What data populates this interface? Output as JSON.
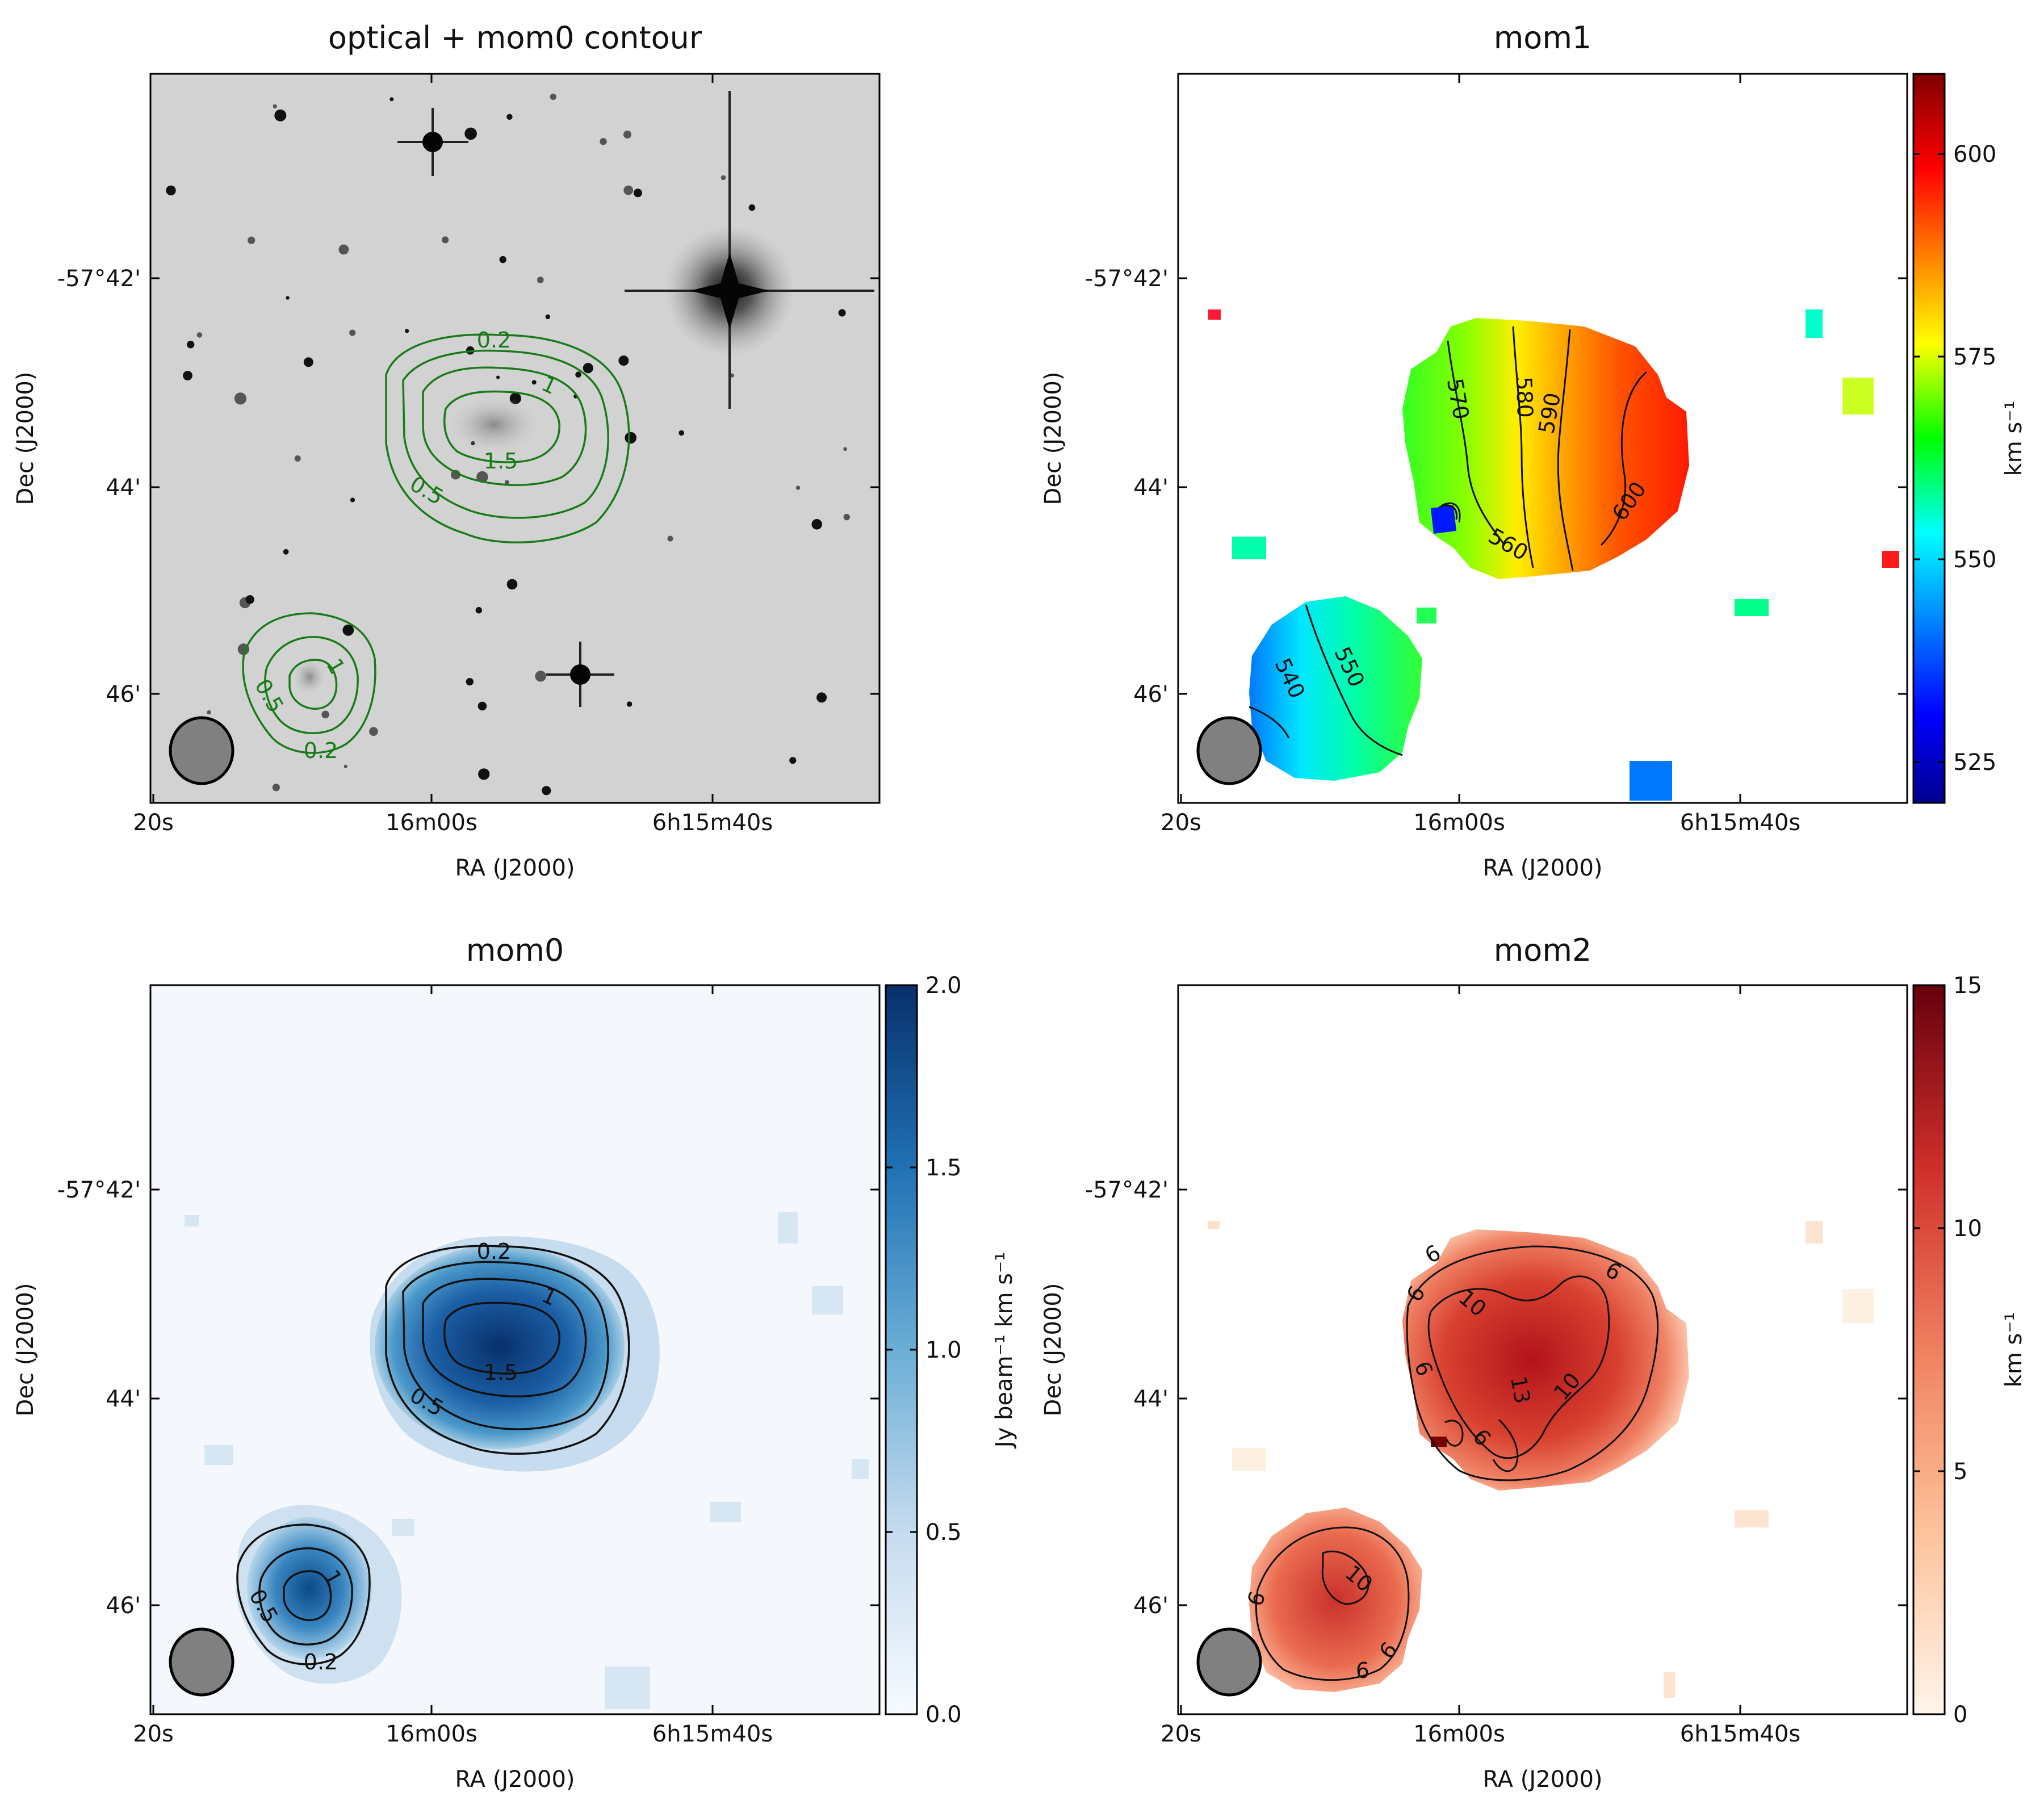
{
  "chart_data": [
    {
      "type": "image",
      "title": "optical + mom0 contour",
      "xlabel": "RA (J2000)",
      "ylabel": "Dec (J2000)",
      "x_ticks": [
        "20s",
        "16m00s",
        "6h15m40s"
      ],
      "y_ticks": [
        "-57°42'",
        "44'",
        "46'"
      ],
      "colormap": "greys",
      "contours": {
        "color": "#1a7a1a",
        "levels": [
          0.2,
          0.5,
          1,
          1.5
        ],
        "labels": [
          "0.2",
          "0.5",
          "1",
          "1.5",
          "0.5",
          "0.2",
          "1"
        ]
      },
      "beam": "grey ellipse, lower-left"
    },
    {
      "type": "heatmap",
      "title": "mom1",
      "xlabel": "RA (J2000)",
      "ylabel": "Dec (J2000)",
      "x_ticks": [
        "20s",
        "16m00s",
        "6h15m40s"
      ],
      "y_ticks": [
        "-57°42'",
        "44'",
        "46'"
      ],
      "colormap": "jet",
      "colorbar": {
        "label": "km s⁻¹",
        "range": [
          520,
          610
        ],
        "ticks": [
          "525",
          "550",
          "575",
          "600"
        ]
      },
      "contour_labels": [
        "570",
        "580",
        "590",
        "600",
        "560",
        "540",
        "550"
      ],
      "beam": "grey ellipse, lower-left"
    },
    {
      "type": "heatmap",
      "title": "mom0",
      "xlabel": "RA (J2000)",
      "ylabel": "Dec (J2000)",
      "x_ticks": [
        "20s",
        "16m00s",
        "6h15m40s"
      ],
      "y_ticks": [
        "-57°42'",
        "44'",
        "46'"
      ],
      "colormap": "blues",
      "colorbar": {
        "label": "Jy beam⁻¹ km s⁻¹",
        "range": [
          0,
          2
        ],
        "ticks": [
          "0.0",
          "0.5",
          "1.0",
          "1.5",
          "2.0"
        ]
      },
      "contour_labels": [
        "0.2",
        "1",
        "1.5",
        "0.5",
        "1",
        "0.5",
        "0.2"
      ],
      "beam": "grey ellipse, lower-left"
    },
    {
      "type": "heatmap",
      "title": "mom2",
      "xlabel": "RA (J2000)",
      "ylabel": "Dec (J2000)",
      "x_ticks": [
        "20s",
        "16m00s",
        "6h15m40s"
      ],
      "y_ticks": [
        "-57°42'",
        "44'",
        "46'"
      ],
      "colormap": "reds",
      "colorbar": {
        "label": "km s⁻¹",
        "range": [
          0,
          15
        ],
        "ticks": [
          "0",
          "5",
          "10",
          "15"
        ]
      },
      "contour_labels": [
        "6",
        "6",
        "10",
        "6",
        "6",
        "10",
        "13",
        "6",
        "10",
        "6",
        "6",
        "6"
      ],
      "beam": "grey ellipse, lower-left"
    }
  ]
}
